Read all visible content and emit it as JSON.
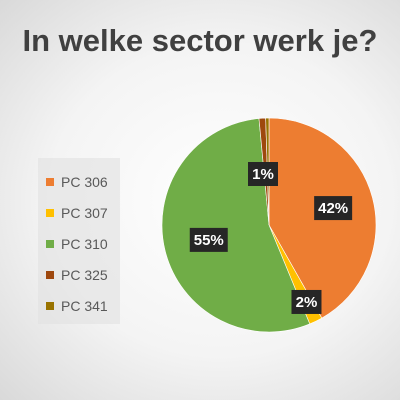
{
  "chart_data": {
    "type": "pie",
    "title": "In welke sector werk je?",
    "categories": [
      "PC 306",
      "PC 307",
      "PC 310",
      "PC 325",
      "PC 341"
    ],
    "values": [
      42,
      2,
      55,
      1,
      0.5
    ],
    "data_labels": [
      "42%",
      "2%",
      "55%",
      "1%",
      ""
    ],
    "colors": [
      "#ED7D31",
      "#FFC000",
      "#70AD47",
      "#9E480E",
      "#997300"
    ],
    "legend_position": "left",
    "grid": false
  }
}
